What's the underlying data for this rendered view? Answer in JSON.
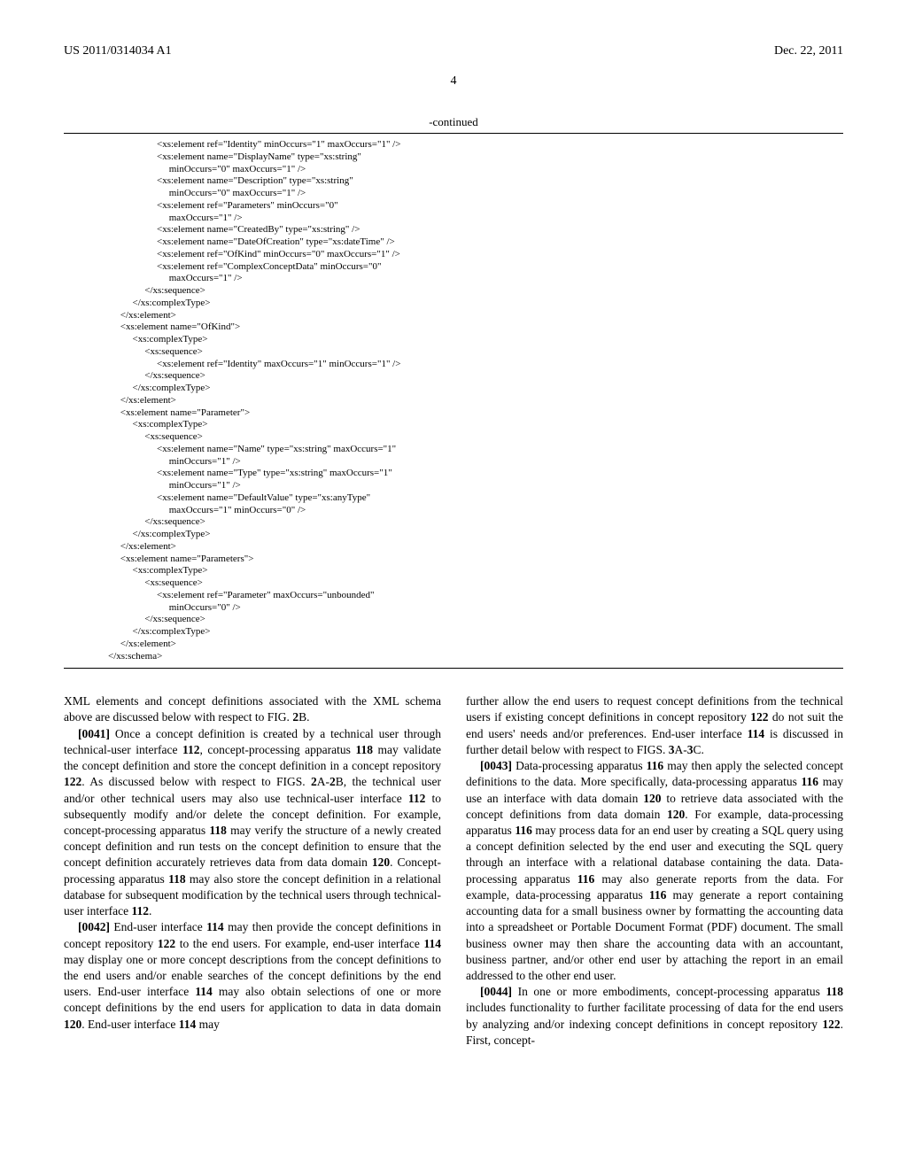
{
  "header": {
    "publication_number": "US 2011/0314034 A1",
    "date": "Dec. 22, 2011"
  },
  "page_number": "4",
  "continued_label": "-continued",
  "code": "                    <xs:element ref=\"Identity\" minOccurs=\"1\" maxOccurs=\"1\" />\n                    <xs:element name=\"DisplayName\" type=\"xs:string\"\n                         minOccurs=\"0\" maxOccurs=\"1\" />\n                    <xs:element name=\"Description\" type=\"xs:string\"\n                         minOccurs=\"0\" maxOccurs=\"1\" />\n                    <xs:element ref=\"Parameters\" minOccurs=\"0\"\n                         maxOccurs=\"1\" />\n                    <xs:element name=\"CreatedBy\" type=\"xs:string\" />\n                    <xs:element name=\"DateOfCreation\" type=\"xs:dateTime\" />\n                    <xs:element ref=\"OfKind\" minOccurs=\"0\" maxOccurs=\"1\" />\n                    <xs:element ref=\"ComplexConceptData\" minOccurs=\"0\"\n                         maxOccurs=\"1\" />\n               </xs:sequence>\n          </xs:complexType>\n     </xs:element>\n     <xs:element name=\"OfKind\">\n          <xs:complexType>\n               <xs:sequence>\n                    <xs:element ref=\"Identity\" maxOccurs=\"1\" minOccurs=\"1\" />\n               </xs:sequence>\n          </xs:complexType>\n     </xs:element>\n     <xs:element name=\"Parameter\">\n          <xs:complexType>\n               <xs:sequence>\n                    <xs:element name=\"Name\" type=\"xs:string\" maxOccurs=\"1\"\n                         minOccurs=\"1\" />\n                    <xs:element name=\"Type\" type=\"xs:string\" maxOccurs=\"1\"\n                         minOccurs=\"1\" />\n                    <xs:element name=\"DefaultValue\" type=\"xs:anyType\"\n                         maxOccurs=\"1\" minOccurs=\"0\" />\n               </xs:sequence>\n          </xs:complexType>\n     </xs:element>\n     <xs:element name=\"Parameters\">\n          <xs:complexType>\n               <xs:sequence>\n                    <xs:element ref=\"Parameter\" maxOccurs=\"unbounded\"\n                         minOccurs=\"0\" />\n               </xs:sequence>\n          </xs:complexType>\n     </xs:element>\n</xs:schema>",
  "left_column": {
    "para0_text": "XML elements and concept definitions associated with the XML schema above are discussed below with respect to FIG. ",
    "para0_ref": "2",
    "para0_suffix": "B.",
    "para1_num": "[0041]",
    "para1_text": "    Once a concept definition is created by a technical user through technical-user interface ",
    "para1_ref1": "112",
    "para1_text2": ", concept-processing apparatus ",
    "para1_ref2": "118",
    "para1_text3": " may validate the concept definition and store the concept definition in a concept repository ",
    "para1_ref3": "122",
    "para1_text4": ". As discussed below with respect to FIGS. ",
    "para1_ref4": "2",
    "para1_text5": "A-",
    "para1_ref5": "2",
    "para1_text6": "B, the technical user and/or other technical users may also use technical-user interface ",
    "para1_ref6": "112",
    "para1_text7": " to subsequently modify and/or delete the concept definition. For example, concept-processing apparatus ",
    "para1_ref7": "118",
    "para1_text8": " may verify the structure of a newly created concept definition and run tests on the concept definition to ensure that the concept definition accurately retrieves data from data domain ",
    "para1_ref8": "120",
    "para1_text9": ". Concept-processing apparatus ",
    "para1_ref9": "118",
    "para1_text10": " may also store the concept definition in a relational database for subsequent modification by the technical users through technical-user interface ",
    "para1_ref10": "112",
    "para1_text11": ".",
    "para2_num": "[0042]",
    "para2_text": "    End-user interface ",
    "para2_ref1": "114",
    "para2_text2": " may then provide the concept definitions in concept repository ",
    "para2_ref2": "122",
    "para2_text3": " to the end users. For example, end-user interface ",
    "para2_ref3": "114",
    "para2_text4": " may display one or more concept descriptions from the concept definitions to the end users and/or enable searches of the concept definitions by the end users. End-user interface ",
    "para2_ref4": "114",
    "para2_text5": " may also obtain selections of one or more concept definitions by the end users for application to data in data domain ",
    "para2_ref5": "120",
    "para2_text6": ". End-user interface ",
    "para2_ref6": "114",
    "para2_text7": " may"
  },
  "right_column": {
    "para0_text": "further allow the end users to request concept definitions from the technical users if existing concept definitions in concept repository ",
    "para0_ref1": "122",
    "para0_text2": " do not suit the end users' needs and/or preferences. End-user interface ",
    "para0_ref2": "114",
    "para0_text3": " is discussed in further detail below with respect to FIGS. ",
    "para0_ref3": "3",
    "para0_text4": "A-",
    "para0_ref4": "3",
    "para0_text5": "C.",
    "para1_num": "[0043]",
    "para1_text": "    Data-processing apparatus ",
    "para1_ref1": "116",
    "para1_text2": " may then apply the selected concept definitions to the data. More specifically, data-processing apparatus ",
    "para1_ref2": "116",
    "para1_text3": " may use an interface with data domain ",
    "para1_ref3": "120",
    "para1_text4": " to retrieve data associated with the concept definitions from data domain ",
    "para1_ref4": "120",
    "para1_text5": ". For example, data-processing apparatus ",
    "para1_ref5": "116",
    "para1_text6": " may process data for an end user by creating a SQL query using a concept definition selected by the end user and executing the SQL query through an interface with a relational database containing the data. Data-processing apparatus ",
    "para1_ref6": "116",
    "para1_text7": " may also generate reports from the data. For example, data-processing apparatus ",
    "para1_ref7": "116",
    "para1_text8": " may generate a report containing accounting data for a small business owner by formatting the accounting data into a spreadsheet or Portable Document Format (PDF) document. The small business owner may then share the accounting data with an accountant, business partner, and/or other end user by attaching the report in an email addressed to the other end user.",
    "para2_num": "[0044]",
    "para2_text": "    In one or more embodiments, concept-processing apparatus ",
    "para2_ref1": "118",
    "para2_text2": " includes functionality to further facilitate processing of data for the end users by analyzing and/or indexing concept definitions in concept repository ",
    "para2_ref2": "122",
    "para2_text3": ". First, concept-"
  }
}
